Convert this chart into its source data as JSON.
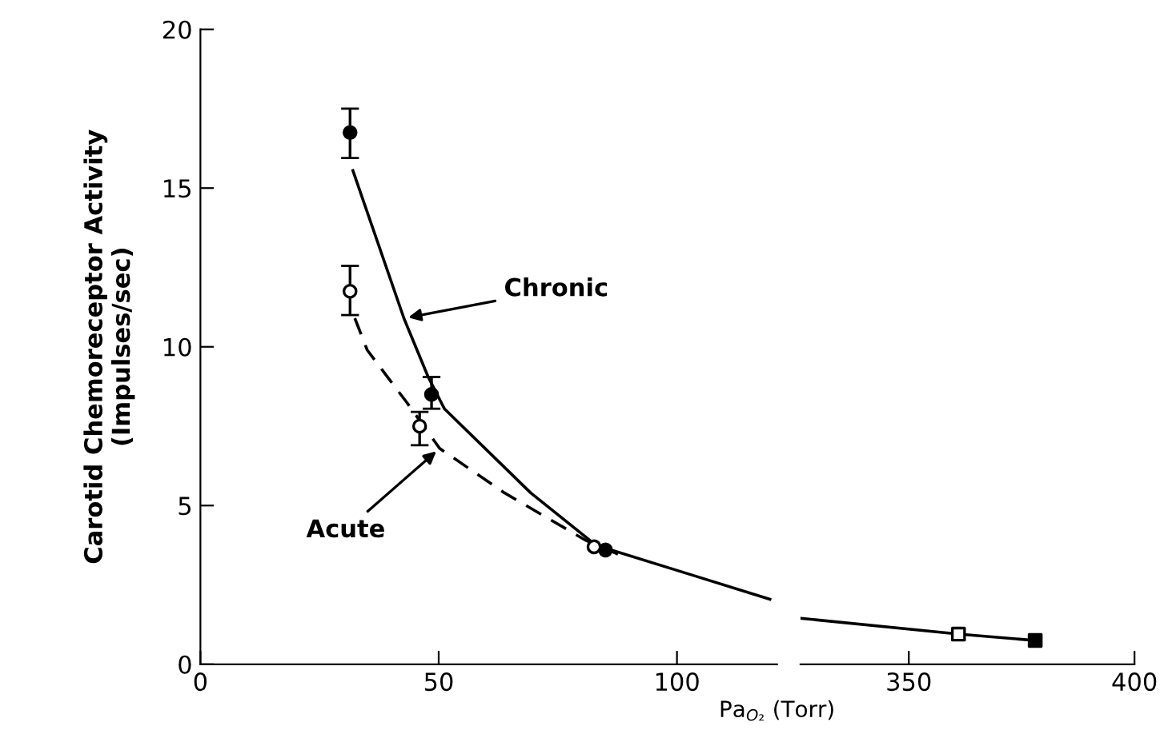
{
  "chart_data": [
    {
      "type": "line",
      "xlabel": "Pa$_{O₂}$ (Torr)",
      "ylabel": "Carotid Chemoreceptor Activity\n(Impulses/sec)",
      "xlim": [
        0,
        121
      ],
      "xticks": [
        0,
        50,
        100
      ],
      "ylim": [
        0,
        20
      ],
      "yticks": [
        0,
        5,
        10,
        15,
        20
      ],
      "grid": false,
      "legend": false,
      "series": [
        {
          "line_style": "solid",
          "color": "#000000",
          "x": [
            32,
            42.7,
            47.8,
            51.2,
            69.3,
            83,
            103.4,
            119.5
          ],
          "values": [
            15.55,
            10.9,
            9.05,
            8.05,
            5.4,
            3.75,
            2.8,
            2.05
          ]
        },
        {
          "line_style": "dashed",
          "color": "#000000",
          "x": [
            32.4,
            35,
            40,
            43.3,
            50.2,
            63.8,
            80.9,
            88.7
          ],
          "values": [
            10.9,
            9.9,
            8.9,
            8.25,
            6.8,
            5.4,
            3.9,
            3.4
          ]
        },
        {
          "type": "scatter",
          "marker": "circle",
          "color": "#000000",
          "x": [
            31.4,
            48.5,
            85
          ],
          "values": [
            16.75,
            8.5,
            3.6
          ],
          "errors": [
            [
              15.95,
              17.5
            ],
            [
              8.05,
              9.05
            ],
            null
          ]
        },
        {
          "type": "scatter",
          "marker": "circle",
          "color": "#ffffff",
          "x": [
            31.4,
            46,
            82.6
          ],
          "values": [
            11.75,
            7.5,
            3.7
          ],
          "errors": [
            [
              11.0,
              12.55
            ],
            [
              6.9,
              7.95
            ],
            null
          ]
        }
      ],
      "annotations": [
        {
          "text": "Chronic",
          "x": 42.7,
          "y": 10.9
        },
        {
          "text": "Acute",
          "x": 50.2,
          "y": 6.8
        }
      ]
    },
    {
      "type": "line",
      "xlim": [
        326,
        400
      ],
      "xticks": [
        350,
        400
      ],
      "ylim": [
        0,
        20
      ],
      "tick_labels": "x",
      "grid": false,
      "legend": false,
      "series": [
        {
          "line_style": "solid",
          "color": "#000000",
          "x": [
            326,
            361,
            378
          ],
          "values": [
            1.45,
            0.95,
            0.75
          ]
        },
        {
          "type": "scatter",
          "marker": "square",
          "color": "#ffffff",
          "x": [
            361
          ],
          "values": [
            0.95
          ]
        },
        {
          "type": "scatter",
          "marker": "square",
          "color": "#000000",
          "x": [
            378
          ],
          "values": [
            0.75
          ]
        }
      ]
    }
  ]
}
